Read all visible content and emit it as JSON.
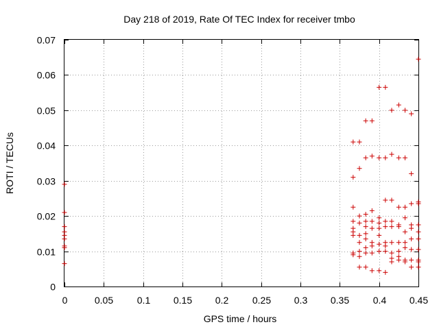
{
  "chart_data": {
    "type": "scatter",
    "title": "Day 218 of 2019, Rate Of TEC Index for receiver tmbo",
    "xlabel": "GPS time / hours",
    "ylabel": "ROTI / TECUs",
    "xlim": [
      0,
      0.45
    ],
    "ylim": [
      0,
      0.07
    ],
    "x_ticks": [
      "0",
      "0.05",
      "0.1",
      "0.15",
      "0.2",
      "0.25",
      "0.3",
      "0.35",
      "0.4",
      "0.45"
    ],
    "y_ticks": [
      "0",
      "0.01",
      "0.02",
      "0.03",
      "0.04",
      "0.05",
      "0.06",
      "0.07"
    ],
    "grid": true,
    "marker": "+",
    "colors": {
      "points": "#cc0000",
      "grid": "#999999",
      "axes": "#000000"
    },
    "series": [
      {
        "points": [
          [
            0,
            0.029
          ],
          [
            0,
            0.021
          ],
          [
            0,
            0.017
          ],
          [
            0,
            0.0155
          ],
          [
            0,
            0.0145
          ],
          [
            0,
            0.0135
          ],
          [
            0,
            0.0115
          ],
          [
            0,
            0.011
          ],
          [
            0,
            0.0065
          ],
          [
            0.367,
            0.041
          ],
          [
            0.367,
            0.031
          ],
          [
            0.367,
            0.0225
          ],
          [
            0.367,
            0.0185
          ],
          [
            0.367,
            0.0165
          ],
          [
            0.367,
            0.0155
          ],
          [
            0.367,
            0.0145
          ],
          [
            0.367,
            0.0095
          ],
          [
            0.367,
            0.009
          ],
          [
            0.375,
            0.041
          ],
          [
            0.375,
            0.0335
          ],
          [
            0.375,
            0.02
          ],
          [
            0.375,
            0.018
          ],
          [
            0.375,
            0.0145
          ],
          [
            0.375,
            0.0125
          ],
          [
            0.375,
            0.01
          ],
          [
            0.375,
            0.0085
          ],
          [
            0.375,
            0.0055
          ],
          [
            0.383,
            0.047
          ],
          [
            0.383,
            0.0365
          ],
          [
            0.383,
            0.0205
          ],
          [
            0.383,
            0.0185
          ],
          [
            0.383,
            0.017
          ],
          [
            0.383,
            0.015
          ],
          [
            0.383,
            0.0135
          ],
          [
            0.383,
            0.011
          ],
          [
            0.383,
            0.0095
          ],
          [
            0.383,
            0.0055
          ],
          [
            0.391,
            0.047
          ],
          [
            0.391,
            0.037
          ],
          [
            0.391,
            0.0215
          ],
          [
            0.391,
            0.0185
          ],
          [
            0.391,
            0.0165
          ],
          [
            0.391,
            0.0125
          ],
          [
            0.391,
            0.0115
          ],
          [
            0.391,
            0.0095
          ],
          [
            0.391,
            0.0045
          ],
          [
            0.4,
            0.0565
          ],
          [
            0.4,
            0.0365
          ],
          [
            0.4,
            0.0195
          ],
          [
            0.4,
            0.018
          ],
          [
            0.4,
            0.0165
          ],
          [
            0.4,
            0.0145
          ],
          [
            0.4,
            0.012
          ],
          [
            0.4,
            0.01
          ],
          [
            0.4,
            0.0045
          ],
          [
            0.408,
            0.0565
          ],
          [
            0.408,
            0.0365
          ],
          [
            0.408,
            0.0245
          ],
          [
            0.408,
            0.0185
          ],
          [
            0.408,
            0.017
          ],
          [
            0.408,
            0.0125
          ],
          [
            0.408,
            0.0115
          ],
          [
            0.408,
            0.01
          ],
          [
            0.408,
            0.004
          ],
          [
            0.416,
            0.05
          ],
          [
            0.416,
            0.0375
          ],
          [
            0.416,
            0.0245
          ],
          [
            0.416,
            0.0185
          ],
          [
            0.416,
            0.017
          ],
          [
            0.416,
            0.0125
          ],
          [
            0.416,
            0.0095
          ],
          [
            0.416,
            0.008
          ],
          [
            0.416,
            0.007
          ],
          [
            0.425,
            0.0515
          ],
          [
            0.425,
            0.0365
          ],
          [
            0.425,
            0.0225
          ],
          [
            0.425,
            0.0175
          ],
          [
            0.425,
            0.017
          ],
          [
            0.425,
            0.0125
          ],
          [
            0.425,
            0.01
          ],
          [
            0.425,
            0.0085
          ],
          [
            0.425,
            0.0075
          ],
          [
            0.433,
            0.05
          ],
          [
            0.433,
            0.0365
          ],
          [
            0.433,
            0.0225
          ],
          [
            0.433,
            0.0195
          ],
          [
            0.433,
            0.0155
          ],
          [
            0.433,
            0.0125
          ],
          [
            0.433,
            0.011
          ],
          [
            0.433,
            0.0075
          ],
          [
            0.433,
            0.007
          ],
          [
            0.441,
            0.049
          ],
          [
            0.441,
            0.032
          ],
          [
            0.441,
            0.0235
          ],
          [
            0.441,
            0.0175
          ],
          [
            0.441,
            0.0165
          ],
          [
            0.441,
            0.0135
          ],
          [
            0.441,
            0.0105
          ],
          [
            0.441,
            0.0075
          ],
          [
            0.441,
            0.0055
          ],
          [
            0.45,
            0.0645
          ],
          [
            0.45,
            0.024
          ],
          [
            0.45,
            0.0235
          ],
          [
            0.45,
            0.0175
          ],
          [
            0.45,
            0.0155
          ],
          [
            0.45,
            0.0135
          ],
          [
            0.45,
            0.0105
          ],
          [
            0.45,
            0.0075
          ],
          [
            0.45,
            0.007
          ],
          [
            0.45,
            0.0055
          ]
        ]
      }
    ]
  }
}
